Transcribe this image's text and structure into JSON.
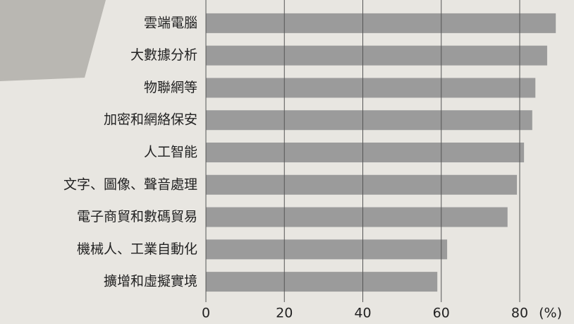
{
  "chart_data": {
    "type": "barh",
    "categories": [
      "雲端電腦",
      "大數據分析",
      "物聯網等",
      "加密和網絡保安",
      "人工智能",
      "文字、圖像、聲音處理",
      "電子商貿和數碼貿易",
      "機械人、工業自動化",
      "擴增和虛擬實境"
    ],
    "values": [
      89.2,
      87.0,
      84.0,
      83.2,
      81.1,
      79.3,
      76.9,
      61.5,
      59.0
    ],
    "color": "#9b9b9b",
    "xlim": [
      0,
      92
    ],
    "xticks": [
      0,
      20,
      40,
      60,
      80
    ],
    "x_label": "(%)",
    "grid": true
  }
}
